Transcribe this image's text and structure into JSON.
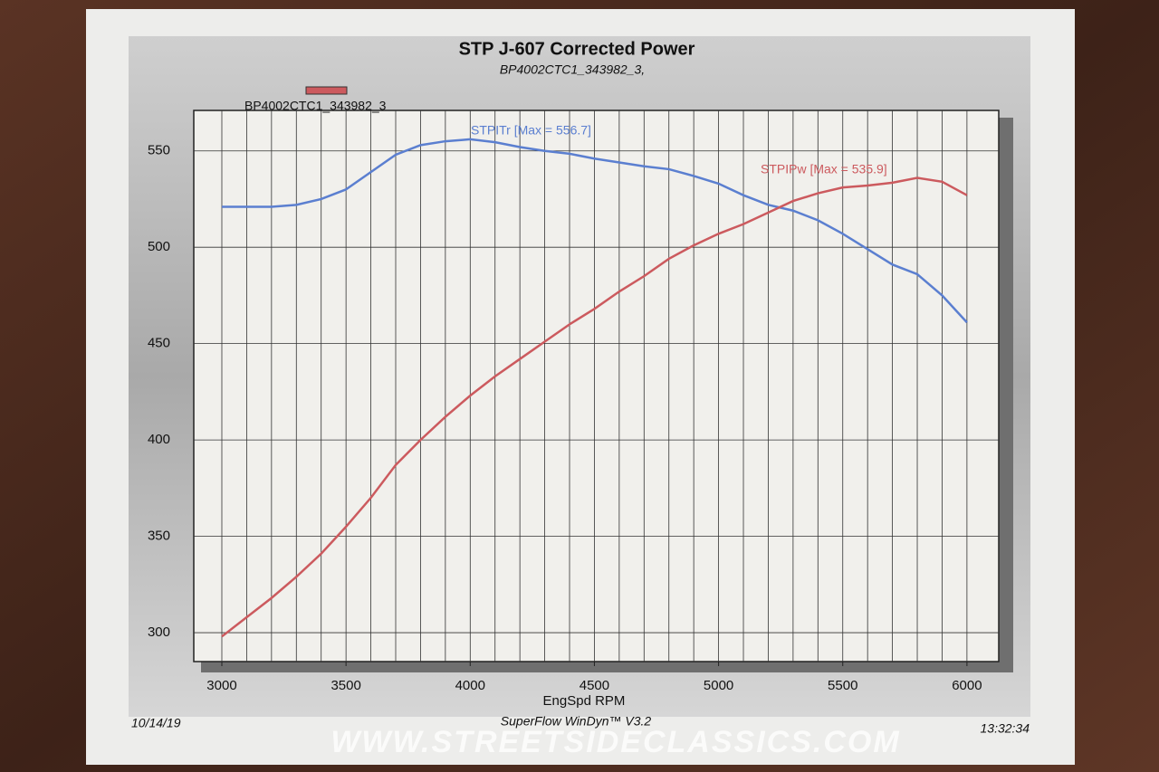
{
  "chart_data": {
    "type": "line",
    "title": "STP J-607 Corrected Power",
    "subtitle": "BP4002CTC1_343982_3,",
    "legend": "BP4002CTC1_343982_3",
    "x_label": "EngSpd RPM",
    "footer_left": "10/14/19",
    "footer_center": "SuperFlow WinDyn™ V3.2",
    "footer_right": "13:32:34",
    "watermark": "WWW.STREETSIDECLASSICS.COM",
    "x": [
      3000,
      3100,
      3200,
      3300,
      3400,
      3500,
      3600,
      3700,
      3800,
      3900,
      4000,
      4100,
      4200,
      4300,
      4400,
      4500,
      4600,
      4700,
      4800,
      4900,
      5000,
      5100,
      5200,
      5300,
      5400,
      5500,
      5600,
      5700,
      5800,
      5900,
      6000
    ],
    "series": [
      {
        "name": "STPITr [Max = 556.7]",
        "color": "#5b7fd0",
        "values": [
          521,
          521,
          521,
          522,
          525,
          530,
          539,
          548,
          553,
          555,
          556,
          554.5,
          552,
          550,
          548.5,
          546,
          544,
          542,
          540.5,
          537,
          533,
          527,
          522,
          519,
          514,
          507,
          499,
          491,
          486,
          475,
          461
        ]
      },
      {
        "name": "STPIPw [Max = 535.9]",
        "color": "#cc5a5e",
        "values": [
          298,
          308,
          318,
          329,
          341,
          355,
          370,
          387,
          400,
          412,
          423,
          433,
          442,
          451,
          460,
          468,
          477,
          485,
          494,
          501,
          507,
          512,
          518,
          524,
          528,
          531,
          532,
          533.5,
          536,
          534,
          527
        ]
      }
    ],
    "xlim": [
      2887,
      6128
    ],
    "ylim": [
      285,
      571
    ],
    "xticks": [
      3000,
      3500,
      4000,
      4500,
      5000,
      5500,
      6000
    ],
    "yticks": [
      300,
      350,
      400,
      450,
      500,
      550
    ],
    "grid": true
  }
}
